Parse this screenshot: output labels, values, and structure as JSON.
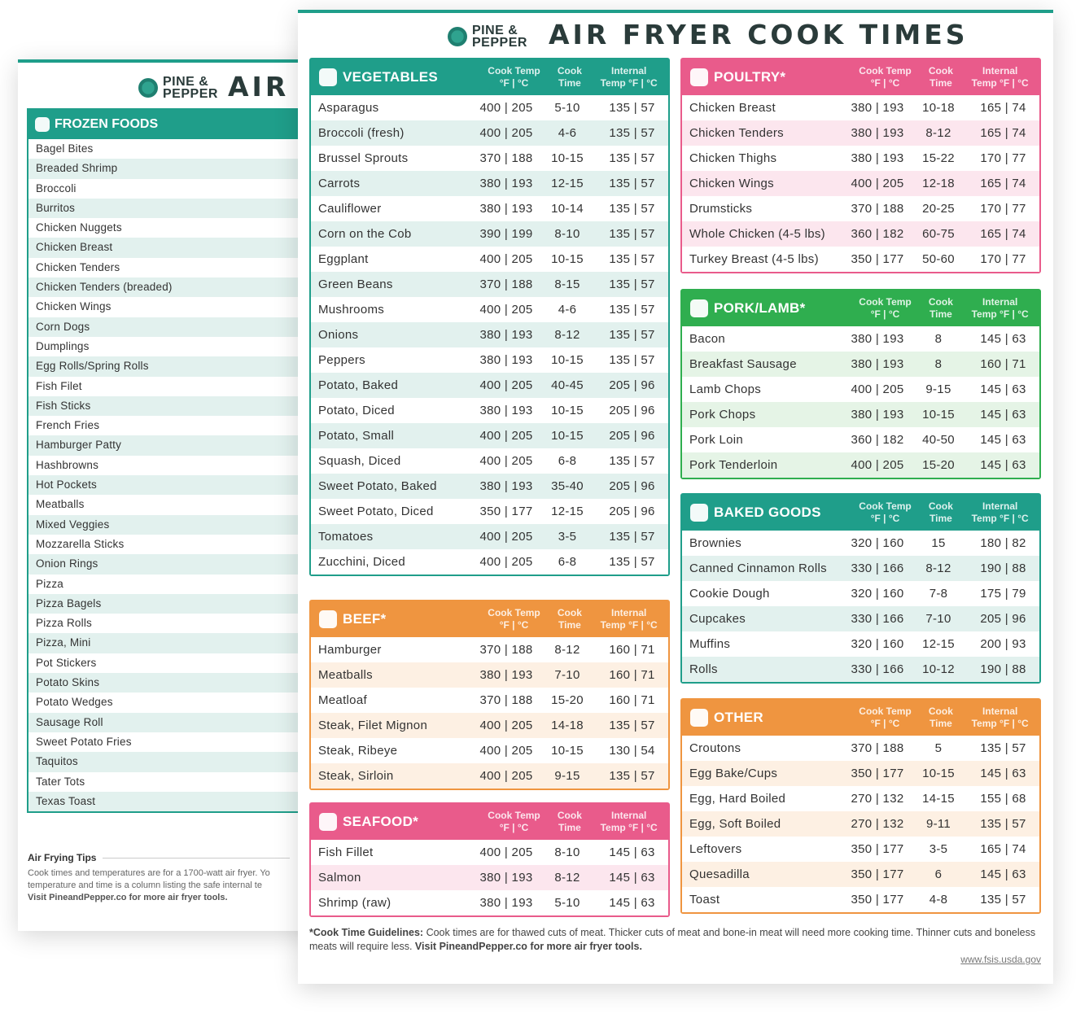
{
  "back_sheet": {
    "brand": [
      "PINE &",
      "PEPPER"
    ],
    "title": "AIR FRYER COOK TIMES",
    "frozen_foods": {
      "title": "FROZEN FOODS",
      "items": [
        "Bagel Bites",
        "Breaded Shrimp",
        "Broccoli",
        "Burritos",
        "Chicken Nuggets",
        "Chicken Breast",
        "Chicken Tenders",
        "Chicken Tenders (breaded)",
        "Chicken Wings",
        "Corn Dogs",
        "Dumplings",
        "Egg Rolls/Spring Rolls",
        "Fish Filet",
        "Fish Sticks",
        "French Fries",
        "Hamburger Patty",
        "Hashbrowns",
        "Hot Pockets",
        "Meatballs",
        "Mixed Veggies",
        "Mozzarella Sticks",
        "Onion Rings",
        "Pizza",
        "Pizza Bagels",
        "Pizza Rolls",
        "Pizza, Mini",
        "Pot Stickers",
        "Potato Skins",
        "Potato Wedges",
        "Sausage Roll",
        "Sweet Potato Fries",
        "Taquitos",
        "Tater Tots",
        "Texas Toast"
      ]
    },
    "tips": {
      "title": "Air Frying Tips",
      "lines": [
        "Cook times and temperatures are for a 1700-watt air fryer. Yo",
        "temperature and time is a column listing the safe internal te",
        "Visit PineandPepper.co for more air fryer tools."
      ]
    }
  },
  "front_sheet": {
    "brand": [
      "PINE &",
      "PEPPER"
    ],
    "title": "AIR FRYER COOK TIMES",
    "column_headers": [
      [
        "Cook Temp",
        "°F | °C"
      ],
      [
        "Cook",
        "Time"
      ],
      [
        "Internal",
        "Temp °F | °C"
      ]
    ],
    "tables": [
      {
        "title": "VEGETABLES",
        "color": "#1f9e8a",
        "tint": "#e2f1ee",
        "rows": [
          [
            "Asparagus",
            "400 | 205",
            "5-10",
            "135 | 57"
          ],
          [
            "Broccoli (fresh)",
            "400 | 205",
            "4-6",
            "135 | 57"
          ],
          [
            "Brussel Sprouts",
            "370 | 188",
            "10-15",
            "135 | 57"
          ],
          [
            "Carrots",
            "380 | 193",
            "12-15",
            "135 | 57"
          ],
          [
            "Cauliflower",
            "380 | 193",
            "10-14",
            "135 | 57"
          ],
          [
            "Corn on the Cob",
            "390 | 199",
            "8-10",
            "135 | 57"
          ],
          [
            "Eggplant",
            "400 | 205",
            "10-15",
            "135 | 57"
          ],
          [
            "Green Beans",
            "370 | 188",
            "8-15",
            "135 | 57"
          ],
          [
            "Mushrooms",
            "400 | 205",
            "4-6",
            "135 | 57"
          ],
          [
            "Onions",
            "380 | 193",
            "8-12",
            "135 | 57"
          ],
          [
            "Peppers",
            "380 | 193",
            "10-15",
            "135 | 57"
          ],
          [
            "Potato, Baked",
            "400 | 205",
            "40-45",
            "205 | 96"
          ],
          [
            "Potato, Diced",
            "380 | 193",
            "10-15",
            "205 | 96"
          ],
          [
            "Potato, Small",
            "400 | 205",
            "10-15",
            "205 | 96"
          ],
          [
            "Squash, Diced",
            "400 | 205",
            "6-8",
            "135 | 57"
          ],
          [
            "Sweet Potato, Baked",
            "380 | 193",
            "35-40",
            "205 | 96"
          ],
          [
            "Sweet Potato, Diced",
            "350 | 177",
            "12-15",
            "205 | 96"
          ],
          [
            "Tomatoes",
            "400 | 205",
            "3-5",
            "135 | 57"
          ],
          [
            "Zucchini, Diced",
            "400 | 205",
            "6-8",
            "135 | 57"
          ]
        ]
      },
      {
        "title": "BEEF*",
        "color": "#ef9540",
        "tint": "#fdf0e3",
        "rows": [
          [
            "Hamburger",
            "370 | 188",
            "8-12",
            "160 | 71"
          ],
          [
            "Meatballs",
            "380 | 193",
            "7-10",
            "160 | 71"
          ],
          [
            "Meatloaf",
            "370 | 188",
            "15-20",
            "160 | 71"
          ],
          [
            "Steak, Filet Mignon",
            "400 | 205",
            "14-18",
            "135 | 57"
          ],
          [
            "Steak, Ribeye",
            "400 | 205",
            "10-15",
            "130 | 54"
          ],
          [
            "Steak, Sirloin",
            "400 | 205",
            "9-15",
            "135 | 57"
          ]
        ]
      },
      {
        "title": "SEAFOOD*",
        "color": "#e95b8b",
        "tint": "#fce6ee",
        "rows": [
          [
            "Fish Fillet",
            "400 | 205",
            "8-10",
            "145 | 63"
          ],
          [
            "Salmon",
            "380 | 193",
            "8-12",
            "145 | 63"
          ],
          [
            "Shrimp (raw)",
            "380 | 193",
            "5-10",
            "145 | 63"
          ]
        ]
      },
      {
        "title": "POULTRY*",
        "color": "#e95b8b",
        "tint": "#fce6ee",
        "rows": [
          [
            "Chicken Breast",
            "380 | 193",
            "10-18",
            "165 | 74"
          ],
          [
            "Chicken Tenders",
            "380 | 193",
            "8-12",
            "165 | 74"
          ],
          [
            "Chicken Thighs",
            "380 | 193",
            "15-22",
            "170 | 77"
          ],
          [
            "Chicken Wings",
            "400 | 205",
            "12-18",
            "165 | 74"
          ],
          [
            "Drumsticks",
            "370 | 188",
            "20-25",
            "170 | 77"
          ],
          [
            "Whole Chicken (4-5 lbs)",
            "360 | 182",
            "60-75",
            "165 | 74"
          ],
          [
            "Turkey Breast (4-5 lbs)",
            "350 | 177",
            "50-60",
            "170 | 77"
          ]
        ]
      },
      {
        "title": "PORK/LAMB*",
        "color": "#2fae4f",
        "tint": "#e5f4e6",
        "rows": [
          [
            "Bacon",
            "380 | 193",
            "8",
            "145 | 63"
          ],
          [
            "Breakfast Sausage",
            "380 | 193",
            "8",
            "160 | 71"
          ],
          [
            "Lamb Chops",
            "400 | 205",
            "9-15",
            "145 | 63"
          ],
          [
            "Pork Chops",
            "380 | 193",
            "10-15",
            "145 | 63"
          ],
          [
            "Pork Loin",
            "360 | 182",
            "40-50",
            "145 | 63"
          ],
          [
            "Pork Tenderloin",
            "400 | 205",
            "15-20",
            "145 | 63"
          ]
        ]
      },
      {
        "title": "BAKED GOODS",
        "color": "#1f9e8a",
        "tint": "#e2f1ee",
        "rows": [
          [
            "Brownies",
            "320 | 160",
            "15",
            "180 | 82"
          ],
          [
            "Canned Cinnamon Rolls",
            "330 | 166",
            "8-12",
            "190 | 88"
          ],
          [
            "Cookie Dough",
            "320 | 160",
            "7-8",
            "175 | 79"
          ],
          [
            "Cupcakes",
            "330 | 166",
            "7-10",
            "205 | 96"
          ],
          [
            "Muffins",
            "320 | 160",
            "12-15",
            "200 | 93"
          ],
          [
            "Rolls",
            "330 | 166",
            "10-12",
            "190 | 88"
          ]
        ]
      },
      {
        "title": "OTHER",
        "color": "#ef9540",
        "tint": "#fdf0e3",
        "rows": [
          [
            "Croutons",
            "370 | 188",
            "5",
            "135 | 57"
          ],
          [
            "Egg Bake/Cups",
            "350 | 177",
            "10-15",
            "145 | 63"
          ],
          [
            "Egg, Hard Boiled",
            "270 | 132",
            "14-15",
            "155 | 68"
          ],
          [
            "Egg, Soft Boiled",
            "270 | 132",
            "9-11",
            "135 | 57"
          ],
          [
            "Leftovers",
            "350 | 177",
            "3-5",
            "165 | 74"
          ],
          [
            "Quesadilla",
            "350 | 177",
            "6",
            "145 | 63"
          ],
          [
            "Toast",
            "350 | 177",
            "4-8",
            "135 | 57"
          ]
        ]
      }
    ],
    "footnote": {
      "label": "*Cook Time Guidelines:",
      "text": "Cook times are for thawed cuts of meat. Thicker cuts of meat and bone-in meat will need more cooking time. Thinner cuts and boneless meats will require less.",
      "link_text": "Visit PineandPepper.co for more air fryer tools."
    },
    "source": "www.fsis.usda.gov"
  }
}
